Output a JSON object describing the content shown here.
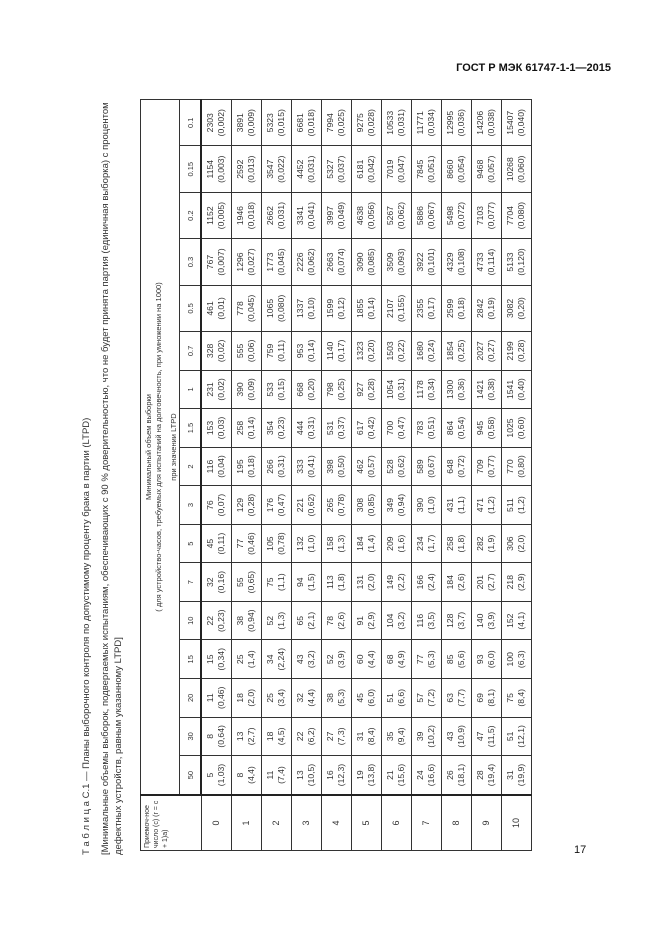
{
  "header": {
    "doc_id": "ГОСТ Р МЭК 61747-1-1—2015"
  },
  "page_number": "17",
  "caption": {
    "title": "Т а б л и ц а  С.1 — Планы выборочного контроля по допустимому проценту брака в партии (LTPD)",
    "note": "[Минимальные объемы выборок, подвергаемых испытаниям, обеспечивающих с 90 % доверительностью, что не будет принята партия (единичная выборка) с процентом дефектных устройств, равным указанному LTPD]"
  },
  "table": {
    "corner_header": "Приемоч-ное число (c) (r = c + 1)a)",
    "group_header": "Минимальный объем выборки",
    "group_subheader": "( для устройство-часов, требуемых для испытаний на долговечность, при умножении на 1000)",
    "ltpd_header": "при значении LTPD",
    "ltpd_values": [
      "50",
      "30",
      "20",
      "15",
      "10",
      "7",
      "5",
      "3",
      "2",
      "1.5",
      "1",
      "0.7",
      "0.5",
      "0.3",
      "0.2",
      "0.15",
      "0.1"
    ],
    "rows": [
      {
        "c": "0",
        "cells": [
          [
            "5",
            "(1,03)"
          ],
          [
            "8",
            "(0,64)"
          ],
          [
            "11",
            "(0,46)"
          ],
          [
            "15",
            "(0,34)"
          ],
          [
            "22",
            "(0,23)"
          ],
          [
            "32",
            "(0,16)"
          ],
          [
            "45",
            "(0,11)"
          ],
          [
            "76",
            "(0,07)"
          ],
          [
            "116",
            "(0,04)"
          ],
          [
            "153",
            "(0,03)"
          ],
          [
            "231",
            "(0,02)"
          ],
          [
            "328",
            "(0,02)"
          ],
          [
            "461",
            "(0,01)"
          ],
          [
            "767",
            "(0,007)"
          ],
          [
            "1152",
            "(0,005)"
          ],
          [
            "1154",
            "(0,003)"
          ],
          [
            "2303",
            "(0,002)"
          ]
        ]
      },
      {
        "c": "1",
        "cells": [
          [
            "8",
            "(4,4)"
          ],
          [
            "13",
            "(2,7)"
          ],
          [
            "18",
            "(2,0)"
          ],
          [
            "25",
            "(1,4)"
          ],
          [
            "38",
            "(0,94)"
          ],
          [
            "55",
            "(0,65)"
          ],
          [
            "77",
            "(0,46)"
          ],
          [
            "129",
            "(0,28)"
          ],
          [
            "195",
            "(0,18)"
          ],
          [
            "258",
            "(0,14)"
          ],
          [
            "390",
            "(0,09)"
          ],
          [
            "555",
            "(0,06)"
          ],
          [
            "778",
            "(0,045)"
          ],
          [
            "1296",
            "(0,027)"
          ],
          [
            "1946",
            "(0,018)"
          ],
          [
            "2592",
            "(0,013)"
          ],
          [
            "3891",
            "(0,009)"
          ]
        ]
      },
      {
        "c": "2",
        "cells": [
          [
            "11",
            "(7,4)"
          ],
          [
            "18",
            "(4,5)"
          ],
          [
            "25",
            "(3,4)"
          ],
          [
            "34",
            "(2,24)"
          ],
          [
            "52",
            "(1,3)"
          ],
          [
            "75",
            "(1,1)"
          ],
          [
            "105",
            "(0,78)"
          ],
          [
            "176",
            "(0,47)"
          ],
          [
            "266",
            "(0,31)"
          ],
          [
            "354",
            "(0,23)"
          ],
          [
            "533",
            "(0,15)"
          ],
          [
            "759",
            "(0,11)"
          ],
          [
            "1065",
            "(0,080)"
          ],
          [
            "1773",
            "(0,045)"
          ],
          [
            "2662",
            "(0,031)"
          ],
          [
            "3547",
            "(0,022)"
          ],
          [
            "5323",
            "(0,015)"
          ]
        ]
      },
      {
        "c": "3",
        "cells": [
          [
            "13",
            "(10,5)"
          ],
          [
            "22",
            "(6,2)"
          ],
          [
            "32",
            "(4,4)"
          ],
          [
            "43",
            "(3,2)"
          ],
          [
            "65",
            "(2,1)"
          ],
          [
            "94",
            "(1,5)"
          ],
          [
            "132",
            "(1,0)"
          ],
          [
            "221",
            "(0,62)"
          ],
          [
            "333",
            "(0,41)"
          ],
          [
            "444",
            "(0,31)"
          ],
          [
            "668",
            "(0,20)"
          ],
          [
            "953",
            "(0,14)"
          ],
          [
            "1337",
            "(0,10)"
          ],
          [
            "2226",
            "(0,062)"
          ],
          [
            "3341",
            "(0,041)"
          ],
          [
            "4452",
            "(0,031)"
          ],
          [
            "6681",
            "(0,018)"
          ]
        ]
      },
      {
        "c": "4",
        "cells": [
          [
            "16",
            "(12,3)"
          ],
          [
            "27",
            "(7,3)"
          ],
          [
            "38",
            "(5,3)"
          ],
          [
            "52",
            "(3,9)"
          ],
          [
            "78",
            "(2,6)"
          ],
          [
            "113",
            "(1,8)"
          ],
          [
            "158",
            "(1,3)"
          ],
          [
            "265",
            "(0,78)"
          ],
          [
            "398",
            "(0,50)"
          ],
          [
            "531",
            "(0,37)"
          ],
          [
            "798",
            "(0,25)"
          ],
          [
            "1140",
            "(0,17)"
          ],
          [
            "1599",
            "(0,12)"
          ],
          [
            "2663",
            "(0,074)"
          ],
          [
            "3997",
            "(0,049)"
          ],
          [
            "5327",
            "(0,037)"
          ],
          [
            "7994",
            "(0,025)"
          ]
        ]
      },
      {
        "c": "5",
        "cells": [
          [
            "19",
            "(13,8)"
          ],
          [
            "31",
            "(8,4)"
          ],
          [
            "45",
            "(6,0)"
          ],
          [
            "60",
            "(4,4)"
          ],
          [
            "91",
            "(2,9)"
          ],
          [
            "131",
            "(2,0)"
          ],
          [
            "184",
            "(1,4)"
          ],
          [
            "308",
            "(0,85)"
          ],
          [
            "462",
            "(0,57)"
          ],
          [
            "617",
            "(0,42)"
          ],
          [
            "927",
            "(0,28)"
          ],
          [
            "1323",
            "(0,20)"
          ],
          [
            "1855",
            "(0,14)"
          ],
          [
            "3090",
            "(0,085)"
          ],
          [
            "4638",
            "(0,056)"
          ],
          [
            "6181",
            "(0,042)"
          ],
          [
            "9275",
            "(0,028)"
          ]
        ]
      },
      {
        "c": "6",
        "cells": [
          [
            "21",
            "(15,6)"
          ],
          [
            "35",
            "(9,4)"
          ],
          [
            "51",
            "(6,6)"
          ],
          [
            "68",
            "(4,9)"
          ],
          [
            "104",
            "(3,2)"
          ],
          [
            "149",
            "(2,2)"
          ],
          [
            "209",
            "(1,6)"
          ],
          [
            "349",
            "(0,94)"
          ],
          [
            "528",
            "(0,62)"
          ],
          [
            "700",
            "(0,47)"
          ],
          [
            "1054",
            "(0,31)"
          ],
          [
            "1503",
            "(0,22)"
          ],
          [
            "2107",
            "(0,155)"
          ],
          [
            "3509",
            "(0,093)"
          ],
          [
            "5267",
            "(0,062)"
          ],
          [
            "7019",
            "(0,047)"
          ],
          [
            "10533",
            "(0,031)"
          ]
        ]
      },
      {
        "c": "7",
        "cells": [
          [
            "24",
            "(16,6)"
          ],
          [
            "39",
            "(10,2)"
          ],
          [
            "57",
            "(7,2)"
          ],
          [
            "77",
            "(5,3)"
          ],
          [
            "116",
            "(3,5)"
          ],
          [
            "166",
            "(2,4)"
          ],
          [
            "234",
            "(1,7)"
          ],
          [
            "390",
            "(1,0)"
          ],
          [
            "589",
            "(0,67)"
          ],
          [
            "783",
            "(0,51)"
          ],
          [
            "1178",
            "(0,34)"
          ],
          [
            "1680",
            "(0,24)"
          ],
          [
            "2355",
            "(0,17)"
          ],
          [
            "3922",
            "(0,101)"
          ],
          [
            "5886",
            "(0,067)"
          ],
          [
            "7845",
            "(0,051)"
          ],
          [
            "11771",
            "(0,034)"
          ]
        ]
      },
      {
        "c": "8",
        "cells": [
          [
            "26",
            "(18,1)"
          ],
          [
            "43",
            "(10,9)"
          ],
          [
            "63",
            "(7,7)"
          ],
          [
            "85",
            "(5,6)"
          ],
          [
            "128",
            "(3,7)"
          ],
          [
            "184",
            "(2,6)"
          ],
          [
            "258",
            "(1,8)"
          ],
          [
            "431",
            "(1,1)"
          ],
          [
            "648",
            "(0,72)"
          ],
          [
            "864",
            "(0,54)"
          ],
          [
            "1300",
            "(0,36)"
          ],
          [
            "1854",
            "(0,25)"
          ],
          [
            "2599",
            "(0,18)"
          ],
          [
            "4329",
            "(0,108)"
          ],
          [
            "5498",
            "(0,072)"
          ],
          [
            "8660",
            "(0,054)"
          ],
          [
            "12995",
            "(0,036)"
          ]
        ]
      },
      {
        "c": "9",
        "cells": [
          [
            "28",
            "(19,4)"
          ],
          [
            "47",
            "(11,5)"
          ],
          [
            "69",
            "(8,1)"
          ],
          [
            "93",
            "(6,0)"
          ],
          [
            "140",
            "(3,9)"
          ],
          [
            "201",
            "(2,7)"
          ],
          [
            "282",
            "(1,9)"
          ],
          [
            "471",
            "(1,2)"
          ],
          [
            "709",
            "(0,77)"
          ],
          [
            "945",
            "(0,58)"
          ],
          [
            "1421",
            "(0,38)"
          ],
          [
            "2027",
            "(0,27)"
          ],
          [
            "2842",
            "(0,19)"
          ],
          [
            "4733",
            "(0,114)"
          ],
          [
            "7103",
            "(0,077)"
          ],
          [
            "9468",
            "(0,057)"
          ],
          [
            "14206",
            "(0,038)"
          ]
        ]
      },
      {
        "c": "10",
        "cells": [
          [
            "31",
            "(19,9)"
          ],
          [
            "51",
            "(12,1)"
          ],
          [
            "75",
            "(8,4)"
          ],
          [
            "100",
            "(6,3)"
          ],
          [
            "152",
            "(4,1)"
          ],
          [
            "218",
            "(2,9)"
          ],
          [
            "306",
            "(2,0)"
          ],
          [
            "511",
            "(1,2)"
          ],
          [
            "770",
            "(0,80)"
          ],
          [
            "1025",
            "(0,60)"
          ],
          [
            "1541",
            "(0,40)"
          ],
          [
            "2199",
            "(0,28)"
          ],
          [
            "3082",
            "(0,20)"
          ],
          [
            "5133",
            "(0,120)"
          ],
          [
            "7704",
            "(0,080)"
          ],
          [
            "10268",
            "(0,060)"
          ],
          [
            "15407",
            "(0,040)"
          ]
        ]
      }
    ]
  }
}
